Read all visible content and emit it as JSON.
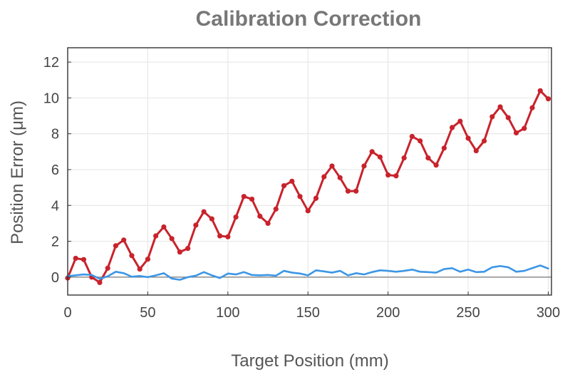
{
  "chart_data": {
    "type": "line",
    "title": "Calibration Correction",
    "xlabel": "Target Position (mm)",
    "ylabel": "Position Error (μm)",
    "xlim": [
      0,
      302
    ],
    "ylim": [
      -1,
      12.8
    ],
    "xticks": [
      0,
      50,
      100,
      150,
      200,
      250,
      300
    ],
    "yticks": [
      0,
      2,
      4,
      6,
      8,
      10,
      12
    ],
    "grid": true,
    "zero_line": true,
    "series": [
      {
        "color": "#c8232c",
        "markers": true,
        "x": [
          0,
          5,
          10,
          15,
          20,
          25,
          30,
          35,
          40,
          45,
          50,
          55,
          60,
          65,
          70,
          75,
          80,
          85,
          90,
          95,
          100,
          105,
          110,
          115,
          120,
          125,
          130,
          135,
          140,
          145,
          150,
          155,
          160,
          165,
          170,
          175,
          180,
          185,
          190,
          195,
          200,
          205,
          210,
          215,
          220,
          225,
          230,
          235,
          240,
          245,
          250,
          255,
          260,
          265,
          270,
          275,
          280,
          285,
          290,
          295,
          300
        ],
        "y": [
          -0.05,
          1.05,
          0.98,
          0.0,
          -0.3,
          0.5,
          1.75,
          2.07,
          1.2,
          0.45,
          1.0,
          2.3,
          2.8,
          2.15,
          1.4,
          1.6,
          2.9,
          3.65,
          3.25,
          2.3,
          2.25,
          3.35,
          4.5,
          4.35,
          3.4,
          3.0,
          3.8,
          5.1,
          5.35,
          4.5,
          3.7,
          4.4,
          5.6,
          6.2,
          5.55,
          4.8,
          4.8,
          6.2,
          7.0,
          6.7,
          5.7,
          5.65,
          6.65,
          7.85,
          7.6,
          6.65,
          6.25,
          7.2,
          8.35,
          8.7,
          7.75,
          7.05,
          7.6,
          8.95,
          9.5,
          8.9,
          8.05,
          8.3,
          9.45,
          10.4,
          9.95
        ]
      },
      {
        "color": "#3c96e6",
        "markers": false,
        "x": [
          0,
          5,
          10,
          15,
          20,
          25,
          30,
          35,
          40,
          45,
          50,
          55,
          60,
          65,
          70,
          75,
          80,
          85,
          90,
          95,
          100,
          105,
          110,
          115,
          120,
          125,
          130,
          135,
          140,
          145,
          150,
          155,
          160,
          165,
          170,
          175,
          180,
          185,
          190,
          195,
          200,
          205,
          210,
          215,
          220,
          225,
          230,
          235,
          240,
          245,
          250,
          255,
          260,
          265,
          270,
          275,
          280,
          285,
          290,
          295,
          300
        ],
        "y": [
          0.05,
          0.1,
          0.15,
          0.12,
          -0.1,
          0.05,
          0.3,
          0.22,
          0.02,
          0.06,
          0.0,
          0.1,
          0.22,
          -0.08,
          -0.15,
          0.0,
          0.08,
          0.28,
          0.1,
          -0.05,
          0.2,
          0.15,
          0.28,
          0.12,
          0.1,
          0.12,
          0.08,
          0.35,
          0.25,
          0.2,
          0.1,
          0.38,
          0.32,
          0.25,
          0.35,
          0.1,
          0.22,
          0.15,
          0.28,
          0.38,
          0.35,
          0.3,
          0.35,
          0.42,
          0.3,
          0.28,
          0.25,
          0.45,
          0.5,
          0.3,
          0.42,
          0.28,
          0.3,
          0.55,
          0.62,
          0.55,
          0.3,
          0.35,
          0.5,
          0.65,
          0.48
        ]
      }
    ]
  }
}
